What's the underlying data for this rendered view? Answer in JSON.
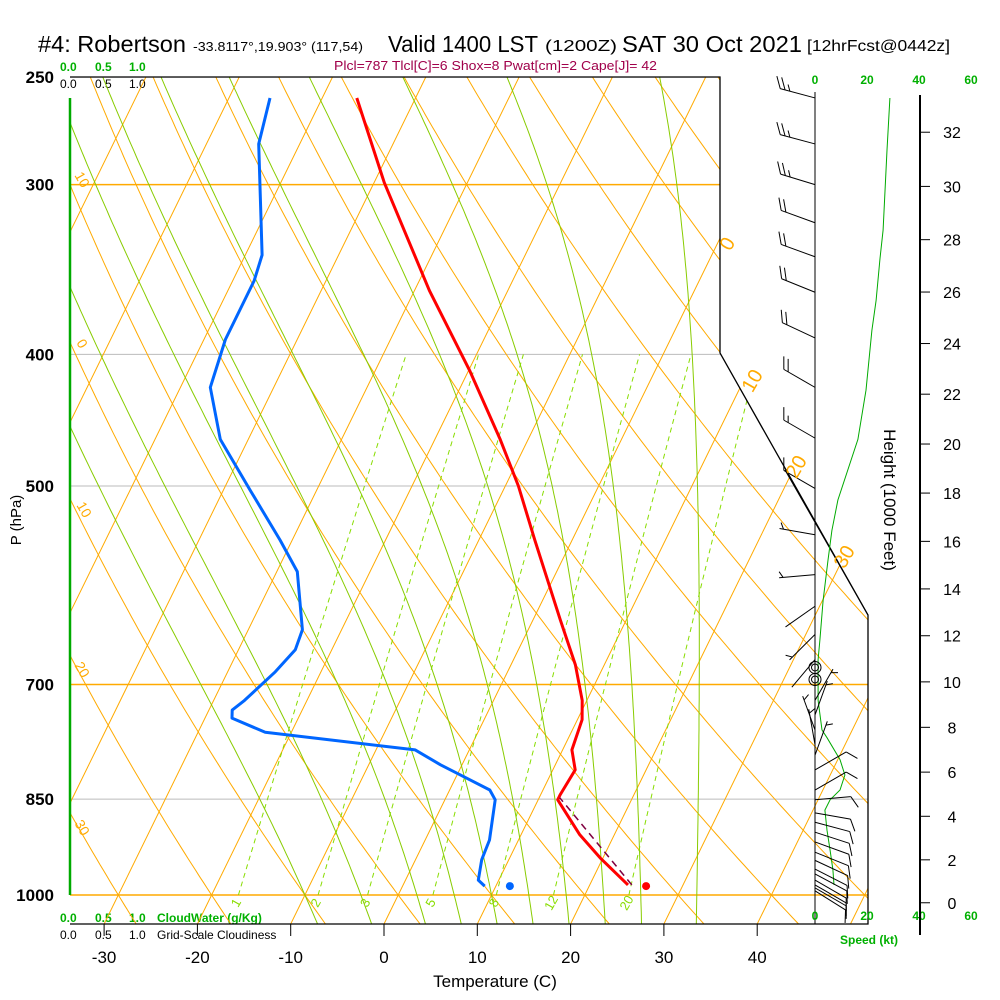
{
  "header": {
    "station": "#4: Robertson",
    "coords": "-33.8117°,19.903° (117,54)",
    "valid": "Valid 1400 LST",
    "utc": "(1200Z)",
    "date": "SAT 30 Oct 2021",
    "forecast": "[12hrFcst@0442z]"
  },
  "indices": "Plcl=787 Tlcl[C]=6 Shox=8 Pwat[cm]=2 Cape[J]= 42",
  "cloud": {
    "water_ticks": [
      "0.0",
      "0.5",
      "1.0"
    ],
    "cover_ticks": [
      "0.0",
      "0.5",
      "1.0"
    ],
    "water_label": "CloudWater (g/Kg)",
    "cover_label": "Grid-Scale Cloudiness"
  },
  "colors": {
    "temperature": "#ff0000",
    "dewpoint": "#0066ff",
    "parcel": "#800040",
    "isotherm": "#ffaa00",
    "moist_adiabat": "#88cc00",
    "mixing_ratio": "#88dd00",
    "speed": "#00aa00",
    "indices": "#a0004a"
  },
  "chart_data": {
    "type": "skewt",
    "xlabel": "Temperature (C)",
    "ylabel": "P (hPa)",
    "y2label": "Height (1000 Feet)",
    "x_ticks": [
      "-30",
      "-20",
      "-10",
      "0",
      "10",
      "20",
      "30",
      "40"
    ],
    "x_tick_values": [
      -30,
      -20,
      -10,
      0,
      10,
      20,
      30,
      40
    ],
    "p_ticks": [
      "250",
      "300",
      "400",
      "500",
      "700",
      "850",
      "1000"
    ],
    "p_tick_values": [
      250,
      300,
      400,
      500,
      700,
      850,
      1000
    ],
    "height_ticks": [
      "0",
      "2",
      "4",
      "6",
      "8",
      "10",
      "12",
      "14",
      "16",
      "18",
      "20",
      "22",
      "24",
      "26",
      "28",
      "30",
      "32"
    ],
    "height_tick_values": [
      0,
      2,
      4,
      6,
      8,
      10,
      12,
      14,
      16,
      18,
      20,
      22,
      24,
      26,
      28,
      30,
      32
    ],
    "speed_ticks": [
      "0",
      "20",
      "40",
      "60"
    ],
    "speed_tick_values": [
      0,
      20,
      40,
      60
    ],
    "speed_label": "Speed (kt)",
    "isotherm_labels": [
      "0",
      "10",
      "20",
      "30"
    ],
    "isotherm_label_values": [
      0,
      10,
      20,
      30
    ],
    "dry_adiabat_labels": [
      "10",
      "0",
      "10",
      "20",
      "30"
    ],
    "dry_adiabat_label_values": [
      10,
      0,
      -10,
      -20,
      -30
    ],
    "mixing_ratio_labels": [
      "1",
      "2",
      "3",
      "5",
      "8",
      "12",
      "20"
    ],
    "mixing_ratio_values": [
      1,
      2,
      3,
      5,
      8,
      12,
      20
    ],
    "moist_adiabat_thetaw": [
      -10,
      -4,
      2,
      6,
      10,
      14,
      18,
      22,
      26,
      32
    ],
    "temperature": [
      {
        "p": 259,
        "t": -46.3
      },
      {
        "p": 299,
        "t": -38.9
      },
      {
        "p": 359,
        "t": -28.4
      },
      {
        "p": 411,
        "t": -19.9
      },
      {
        "p": 462,
        "t": -13.0
      },
      {
        "p": 500,
        "t": -8.6
      },
      {
        "p": 548,
        "t": -4.0
      },
      {
        "p": 627,
        "t": 2.9
      },
      {
        "p": 677,
        "t": 6.9
      },
      {
        "p": 719,
        "t": 9.5
      },
      {
        "p": 743,
        "t": 10.5
      },
      {
        "p": 782,
        "t": 11.0
      },
      {
        "p": 809,
        "t": 12.4
      },
      {
        "p": 844,
        "t": 12.1
      },
      {
        "p": 851,
        "t": 12.1
      },
      {
        "p": 903,
        "t": 16.3
      },
      {
        "p": 939,
        "t": 19.7
      },
      {
        "p": 983,
        "t": 24.1
      }
    ],
    "dewpoint": [
      {
        "p": 259,
        "t": -55.6
      },
      {
        "p": 280,
        "t": -54.4
      },
      {
        "p": 338,
        "t": -48.2
      },
      {
        "p": 353,
        "t": -47.7
      },
      {
        "p": 390,
        "t": -47.7
      },
      {
        "p": 423,
        "t": -46.8
      },
      {
        "p": 462,
        "t": -43.0
      },
      {
        "p": 503,
        "t": -37.2
      },
      {
        "p": 548,
        "t": -31.3
      },
      {
        "p": 578,
        "t": -27.8
      },
      {
        "p": 638,
        "t": -24.2
      },
      {
        "p": 660,
        "t": -23.9
      },
      {
        "p": 685,
        "t": -24.9
      },
      {
        "p": 719,
        "t": -26.7
      },
      {
        "p": 731,
        "t": -27.5
      },
      {
        "p": 741,
        "t": -27.1
      },
      {
        "p": 759,
        "t": -22.8
      },
      {
        "p": 782,
        "t": -5.8
      },
      {
        "p": 802,
        "t": -2.3
      },
      {
        "p": 823,
        "t": 1.7
      },
      {
        "p": 837,
        "t": 4.3
      },
      {
        "p": 851,
        "t": 5.4
      },
      {
        "p": 911,
        "t": 6.9
      },
      {
        "p": 942,
        "t": 7.1
      },
      {
        "p": 975,
        "t": 7.8
      },
      {
        "p": 985,
        "t": 8.8
      }
    ],
    "parcel": [
      {
        "p": 983,
        "t": 24.5
      },
      {
        "p": 848,
        "t": 12.2
      }
    ],
    "surface_temperature": {
      "p": 985,
      "t": 26.1
    },
    "surface_dewpoint": {
      "p": 985,
      "t": 11.5
    },
    "wind_speed": [
      {
        "p": 259,
        "kt": 28.8
      },
      {
        "p": 283,
        "kt": 27.7
      },
      {
        "p": 324,
        "kt": 26.2
      },
      {
        "p": 340,
        "kt": 25
      },
      {
        "p": 365,
        "kt": 23.5
      },
      {
        "p": 384,
        "kt": 21.9
      },
      {
        "p": 425,
        "kt": 19.6
      },
      {
        "p": 462,
        "kt": 16.5
      },
      {
        "p": 512,
        "kt": 8.8
      },
      {
        "p": 539,
        "kt": 6.5
      },
      {
        "p": 567,
        "kt": 5
      },
      {
        "p": 607,
        "kt": 3.1
      },
      {
        "p": 649,
        "kt": 1.9
      },
      {
        "p": 671,
        "kt": 1.2
      },
      {
        "p": 719,
        "kt": 1.2
      },
      {
        "p": 756,
        "kt": 2.7
      },
      {
        "p": 766,
        "kt": 4.6
      },
      {
        "p": 795,
        "kt": 9.6
      },
      {
        "p": 816,
        "kt": 11.5
      },
      {
        "p": 837,
        "kt": 9.6
      },
      {
        "p": 851,
        "kt": 5.8
      },
      {
        "p": 866,
        "kt": 3.8
      },
      {
        "p": 896,
        "kt": 4.6
      },
      {
        "p": 927,
        "kt": 5.8
      },
      {
        "p": 958,
        "kt": 6.9
      },
      {
        "p": 983,
        "kt": 7.3
      }
    ],
    "wind_barbs": [
      {
        "p": 259,
        "dir": 285,
        "kt": 25
      },
      {
        "p": 280,
        "dir": 285,
        "kt": 25
      },
      {
        "p": 300,
        "dir": 287,
        "kt": 25
      },
      {
        "p": 320,
        "dir": 290,
        "kt": 20
      },
      {
        "p": 339,
        "dir": 290,
        "kt": 20
      },
      {
        "p": 360,
        "dir": 292,
        "kt": 20
      },
      {
        "p": 389,
        "dir": 295,
        "kt": 20
      },
      {
        "p": 423,
        "dir": 300,
        "kt": 20
      },
      {
        "p": 461,
        "dir": 300,
        "kt": 15
      },
      {
        "p": 502,
        "dir": 300,
        "kt": 10
      },
      {
        "p": 543,
        "dir": 280,
        "kt": 5
      },
      {
        "p": 581,
        "dir": 265,
        "kt": 5
      },
      {
        "p": 613,
        "dir": 235,
        "kt": 2
      },
      {
        "p": 643,
        "dir": 225,
        "kt": 3
      },
      {
        "p": 671,
        "dir": 220,
        "kt": 2
      },
      {
        "p": 719,
        "dir": 30,
        "kt": 5
      },
      {
        "p": 737,
        "dir": 20,
        "kt": 5
      },
      {
        "p": 756,
        "dir": 340,
        "kt": 3
      },
      {
        "p": 775,
        "dir": 350,
        "kt": 3
      },
      {
        "p": 789,
        "dir": 20,
        "kt": 3
      },
      {
        "p": 809,
        "dir": 60,
        "kt": 10
      },
      {
        "p": 837,
        "dir": 60,
        "kt": 10
      },
      {
        "p": 851,
        "dir": 85,
        "kt": 10
      },
      {
        "p": 870,
        "dir": 100,
        "kt": 10
      },
      {
        "p": 884,
        "dir": 105,
        "kt": 10
      },
      {
        "p": 899,
        "dir": 108,
        "kt": 10
      },
      {
        "p": 914,
        "dir": 110,
        "kt": 10
      },
      {
        "p": 930,
        "dir": 112,
        "kt": 10
      },
      {
        "p": 943,
        "dir": 115,
        "kt": 10
      },
      {
        "p": 957,
        "dir": 117,
        "kt": 10
      },
      {
        "p": 965,
        "dir": 118,
        "kt": 10
      },
      {
        "p": 975,
        "dir": 120,
        "kt": 10
      },
      {
        "p": 983,
        "dir": 120,
        "kt": 10
      },
      {
        "p": 988,
        "dir": 120,
        "kt": 10
      },
      {
        "p": 993,
        "dir": 122,
        "kt": 10
      }
    ],
    "calm_levels": [
      680,
      694
    ]
  }
}
